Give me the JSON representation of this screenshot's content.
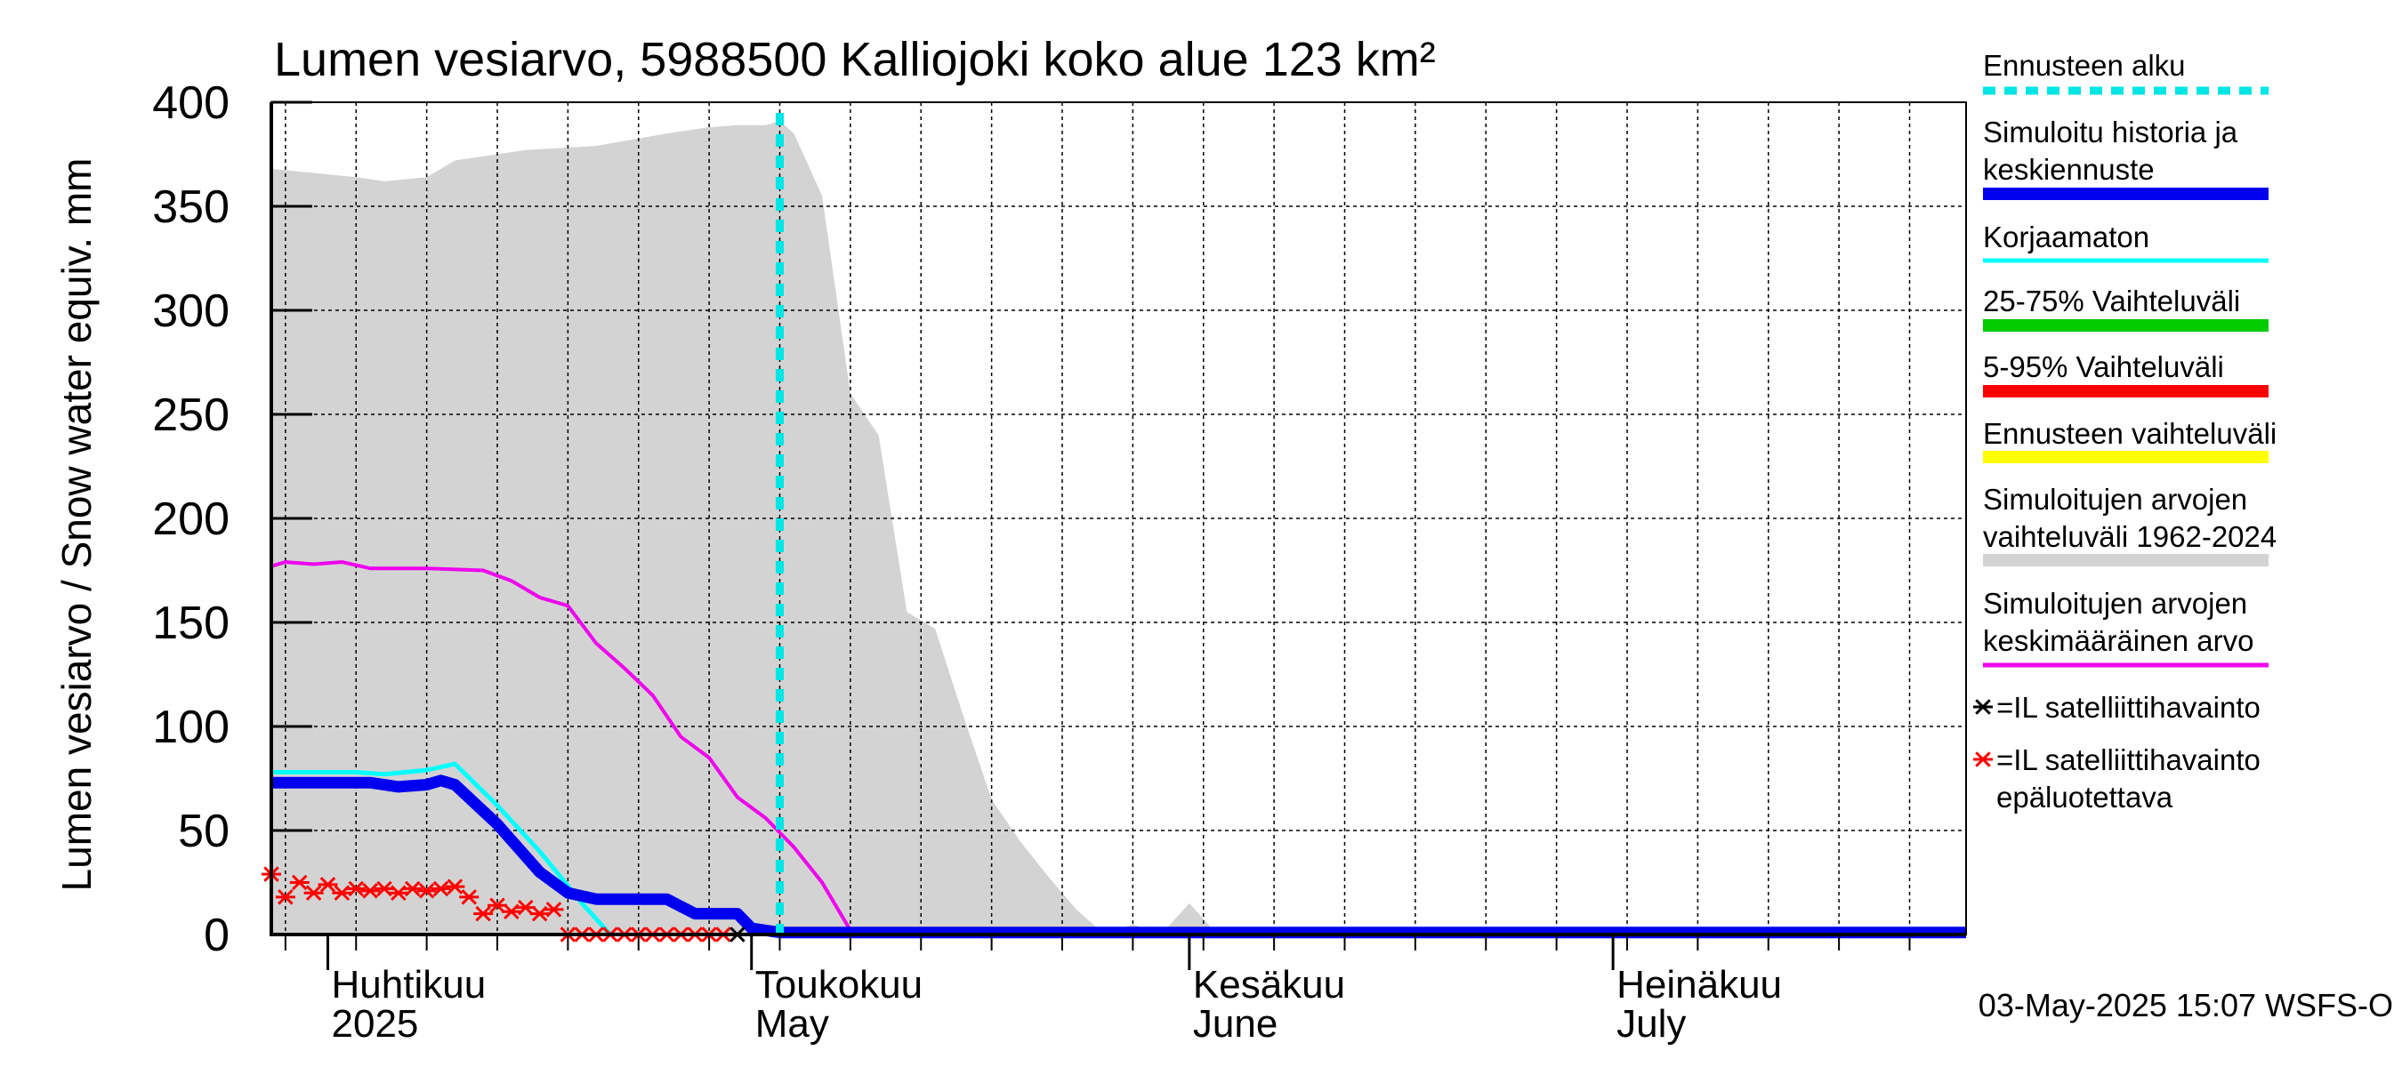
{
  "chart_data": {
    "type": "area",
    "title": "Lumen vesiarvo, 5988500 Kalliojoki koko alue 123 km²",
    "ylabel": "Lumen vesiarvo / Snow water equiv.    mm",
    "ylim": [
      0,
      400
    ],
    "yticks": [
      0,
      50,
      100,
      150,
      200,
      250,
      300,
      350,
      400
    ],
    "xlim": [
      "2025-03-28",
      "2025-07-26"
    ],
    "grid": true,
    "x_labels": [
      {
        "line1": "Huhtikuu",
        "line2": "2025",
        "date": "2025-04-01"
      },
      {
        "line1": "Toukokuu",
        "line2": "May",
        "date": "2025-05-01"
      },
      {
        "line1": "Kesäkuu",
        "line2": "June",
        "date": "2025-06-01"
      },
      {
        "line1": "Heinäkuu",
        "line2": "July",
        "date": "2025-07-01"
      }
    ],
    "forecast_start": "2025-05-03",
    "timestamp": "03-May-2025 15:07 WSFS-O",
    "legend": [
      {
        "label": "Ennusteen alku",
        "color": "#00e5e5",
        "style": "dotted"
      },
      {
        "label": "Simuloitu historia ja keskiennuste",
        "color": "#0000ee",
        "style": "thick"
      },
      {
        "label": "Korjaamaton",
        "color": "#00ffff",
        "style": "line"
      },
      {
        "label": "25-75% Vaihteluväli",
        "color": "#00cc00",
        "style": "thick"
      },
      {
        "label": "5-95% Vaihteluväli",
        "color": "#ff0000",
        "style": "thick"
      },
      {
        "label": "Ennusteen vaihteluväli",
        "color": "#ffff00",
        "style": "thick"
      },
      {
        "label": "Simuloitujen arvojen vaihteluväli 1962-2024",
        "color": "#d3d3d3",
        "style": "thick"
      },
      {
        "label": "Simuloitujen arvojen keskimääräinen arvo",
        "color": "#ee00ee",
        "style": "line"
      },
      {
        "label": "=IL satelliittihavainto",
        "color": "#000000",
        "style": "marker"
      },
      {
        "label": "=IL satelliittihavainto epäluotettava",
        "color": "#ff0000",
        "style": "marker"
      }
    ],
    "series": [
      {
        "name": "Simuloitujen arvojen vaihteluväli 1962-2024",
        "kind": "band",
        "color": "#d3d3d3",
        "x": [
          "2025-03-28",
          "2025-04-03",
          "2025-04-05",
          "2025-04-08",
          "2025-04-10",
          "2025-04-15",
          "2025-04-20",
          "2025-04-25",
          "2025-04-28",
          "2025-04-30",
          "2025-05-02",
          "2025-05-03",
          "2025-05-04",
          "2025-05-06",
          "2025-05-08",
          "2025-05-10",
          "2025-05-12",
          "2025-05-14",
          "2025-05-16",
          "2025-05-18",
          "2025-05-20",
          "2025-05-22",
          "2025-05-24",
          "2025-05-26",
          "2025-05-28",
          "2025-05-30",
          "2025-06-01",
          "2025-06-03",
          "2025-06-05",
          "2025-06-07",
          "2025-07-26"
        ],
        "upper": [
          368,
          364,
          362,
          364,
          372,
          377,
          379,
          385,
          388,
          389,
          389,
          391,
          385,
          355,
          260,
          240,
          155,
          147,
          105,
          65,
          45,
          28,
          12,
          0,
          5,
          0,
          15,
          0,
          0,
          0,
          0
        ],
        "lower": [
          0,
          0,
          0,
          0,
          0,
          0,
          0,
          0,
          0,
          0,
          0,
          0,
          0,
          0,
          0,
          0,
          0,
          0,
          0,
          0,
          0,
          0,
          0,
          0,
          0,
          0,
          0,
          0,
          0,
          0,
          0
        ]
      },
      {
        "name": "Simuloitujen arvojen keskimääräinen arvo",
        "kind": "line",
        "color": "#ee00ee",
        "x": [
          "2025-03-28",
          "2025-03-29",
          "2025-03-31",
          "2025-04-02",
          "2025-04-04",
          "2025-04-08",
          "2025-04-12",
          "2025-04-14",
          "2025-04-16",
          "2025-04-18",
          "2025-04-20",
          "2025-04-22",
          "2025-04-24",
          "2025-04-26",
          "2025-04-28",
          "2025-04-30",
          "2025-05-02",
          "2025-05-04",
          "2025-05-06",
          "2025-05-08",
          "2025-07-26"
        ],
        "values": [
          177,
          179,
          178,
          179,
          176,
          176,
          175,
          170,
          162,
          158,
          140,
          128,
          115,
          95,
          85,
          66,
          56,
          42,
          25,
          2,
          2
        ]
      },
      {
        "name": "Korjaamaton",
        "kind": "line",
        "color": "#00ffff",
        "x": [
          "2025-03-28",
          "2025-04-03",
          "2025-04-05",
          "2025-04-08",
          "2025-04-10",
          "2025-04-13",
          "2025-04-16",
          "2025-04-19",
          "2025-04-21"
        ],
        "values": [
          78,
          78,
          77,
          79,
          82,
          62,
          40,
          15,
          0
        ]
      },
      {
        "name": "Simuloitu historia ja keskiennuste",
        "kind": "line",
        "color": "#0000ee",
        "x": [
          "2025-03-28",
          "2025-04-04",
          "2025-04-06",
          "2025-04-08",
          "2025-04-09",
          "2025-04-10",
          "2025-04-13",
          "2025-04-16",
          "2025-04-18",
          "2025-04-20",
          "2025-04-25",
          "2025-04-27",
          "2025-04-28",
          "2025-04-30",
          "2025-05-01",
          "2025-05-03",
          "2025-07-26"
        ],
        "values": [
          73,
          73,
          71,
          72,
          74,
          72,
          53,
          30,
          20,
          17,
          17,
          10,
          10,
          10,
          3,
          1,
          1
        ]
      }
    ],
    "observations_unreliable": {
      "color": "#ff0000",
      "x": [
        "2025-03-28",
        "2025-03-29",
        "2025-03-30",
        "2025-03-31",
        "2025-04-01",
        "2025-04-02",
        "2025-04-03",
        "2025-04-04",
        "2025-04-05",
        "2025-04-06",
        "2025-04-07",
        "2025-04-08",
        "2025-04-09",
        "2025-04-10",
        "2025-04-11",
        "2025-04-12",
        "2025-04-13",
        "2025-04-14",
        "2025-04-15",
        "2025-04-16",
        "2025-04-17",
        "2025-04-18",
        "2025-04-19",
        "2025-04-20",
        "2025-04-21",
        "2025-04-22",
        "2025-04-23",
        "2025-04-24",
        "2025-04-25",
        "2025-04-26",
        "2025-04-27",
        "2025-04-28",
        "2025-04-29"
      ],
      "values": [
        29,
        18,
        25,
        20,
        24,
        20,
        22,
        21,
        22,
        20,
        22,
        21,
        22,
        23,
        18,
        10,
        14,
        11,
        13,
        10,
        12,
        0,
        0,
        0,
        0,
        0,
        0,
        0,
        0,
        0,
        0,
        0,
        0
      ]
    },
    "observations_reliable": {
      "color": "#000000",
      "x": [
        "2025-04-30"
      ],
      "values": [
        0
      ]
    }
  }
}
